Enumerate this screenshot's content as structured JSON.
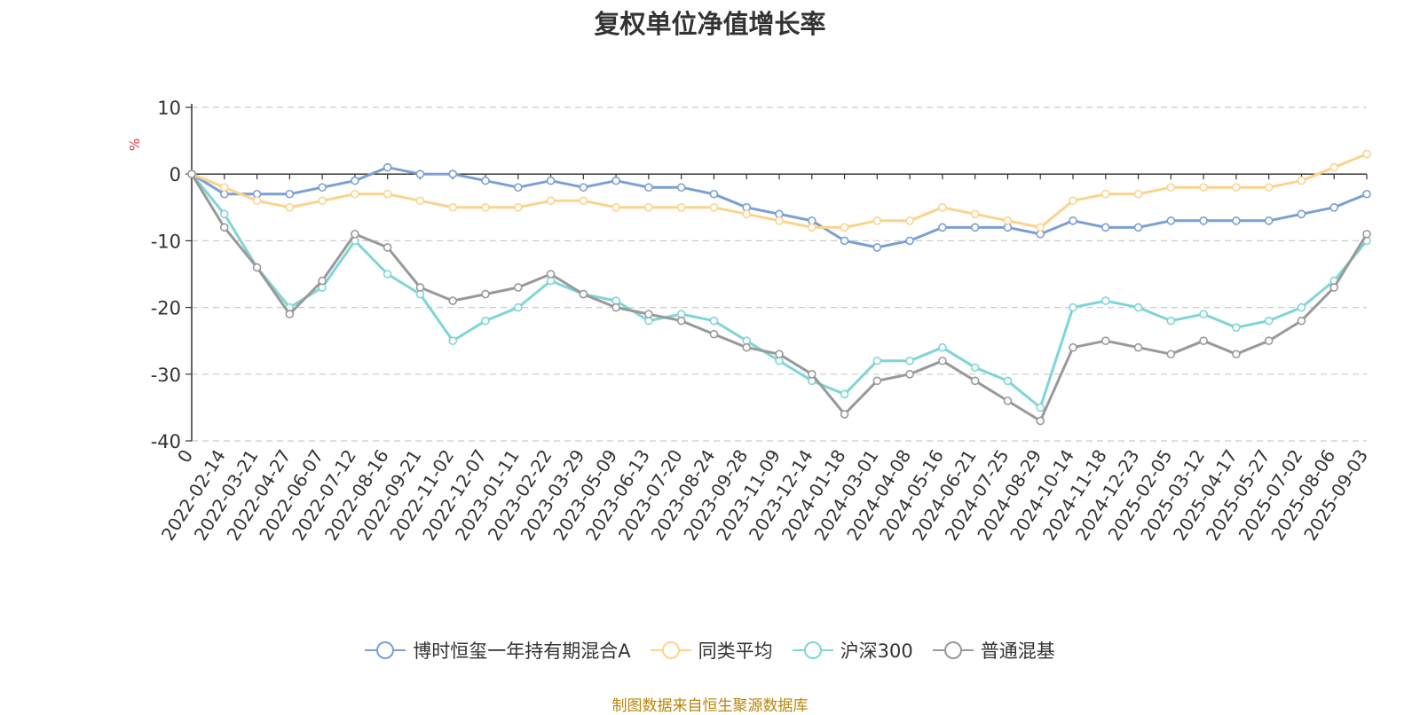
{
  "chart_data": {
    "type": "line",
    "title": "复权单位净值增长率",
    "ylabel": "%",
    "xlabel": "",
    "ylim": [
      -40,
      10
    ],
    "yticks": [
      10,
      0,
      -10,
      -20,
      -30,
      -40
    ],
    "grid": true,
    "legend_position": "bottom",
    "x": [
      "0",
      "2022-02-14",
      "2022-03-21",
      "2022-04-27",
      "2022-06-07",
      "2022-07-12",
      "2022-08-16",
      "2022-09-21",
      "2022-11-02",
      "2022-12-07",
      "2023-01-11",
      "2023-02-22",
      "2023-03-29",
      "2023-05-09",
      "2023-06-13",
      "2023-07-20",
      "2023-08-24",
      "2023-09-28",
      "2023-11-09",
      "2023-12-14",
      "2024-01-18",
      "2024-03-01",
      "2024-04-08",
      "2024-05-16",
      "2024-06-21",
      "2024-07-25",
      "2024-08-29",
      "2024-10-14",
      "2024-11-18",
      "2024-12-23",
      "2025-02-05",
      "2025-03-12",
      "2025-04-17",
      "2025-05-27",
      "2025-07-02",
      "2025-08-06",
      "2025-09-03"
    ],
    "series": [
      {
        "name": "博时恒玺一年持有期混合A",
        "color": "#7b9fd4",
        "values": [
          0,
          -3,
          -3,
          -3,
          -2,
          -1,
          1,
          0,
          0,
          -1,
          -2,
          -1,
          -2,
          -1,
          -2,
          -2,
          -3,
          -5,
          -6,
          -7,
          -10,
          -11,
          -10,
          -8,
          -8,
          -8,
          -9,
          -7,
          -8,
          -8,
          -7,
          -7,
          -7,
          -7,
          -6,
          -5,
          -3
        ]
      },
      {
        "name": "同类平均",
        "color": "#fcd38d",
        "values": [
          0,
          -2,
          -4,
          -5,
          -4,
          -3,
          -3,
          -4,
          -5,
          -5,
          -5,
          -4,
          -4,
          -5,
          -5,
          -5,
          -5,
          -6,
          -7,
          -8,
          -8,
          -7,
          -7,
          -5,
          -6,
          -7,
          -8,
          -4,
          -3,
          -3,
          -2,
          -2,
          -2,
          -2,
          -1,
          1,
          3
        ]
      },
      {
        "name": "沪深300",
        "color": "#7fd5d7",
        "values": [
          0,
          -6,
          -14,
          -20,
          -17,
          -10,
          -15,
          -18,
          -25,
          -22,
          -20,
          -16,
          -18,
          -19,
          -22,
          -21,
          -22,
          -25,
          -28,
          -31,
          -33,
          -28,
          -28,
          -26,
          -29,
          -31,
          -35,
          -20,
          -19,
          -20,
          -22,
          -21,
          -23,
          -22,
          -20,
          -16,
          -10
        ]
      },
      {
        "name": "普通混基",
        "color": "#999999",
        "values": [
          0,
          -8,
          -14,
          -21,
          -16,
          -9,
          -11,
          -17,
          -19,
          -18,
          -17,
          -15,
          -18,
          -20,
          -21,
          -22,
          -24,
          -26,
          -27,
          -30,
          -36,
          -31,
          -30,
          -28,
          -31,
          -34,
          -37,
          -26,
          -25,
          -26,
          -27,
          -25,
          -27,
          -25,
          -22,
          -17,
          -9
        ]
      }
    ]
  },
  "source_text": "制图数据来自恒生聚源数据库"
}
